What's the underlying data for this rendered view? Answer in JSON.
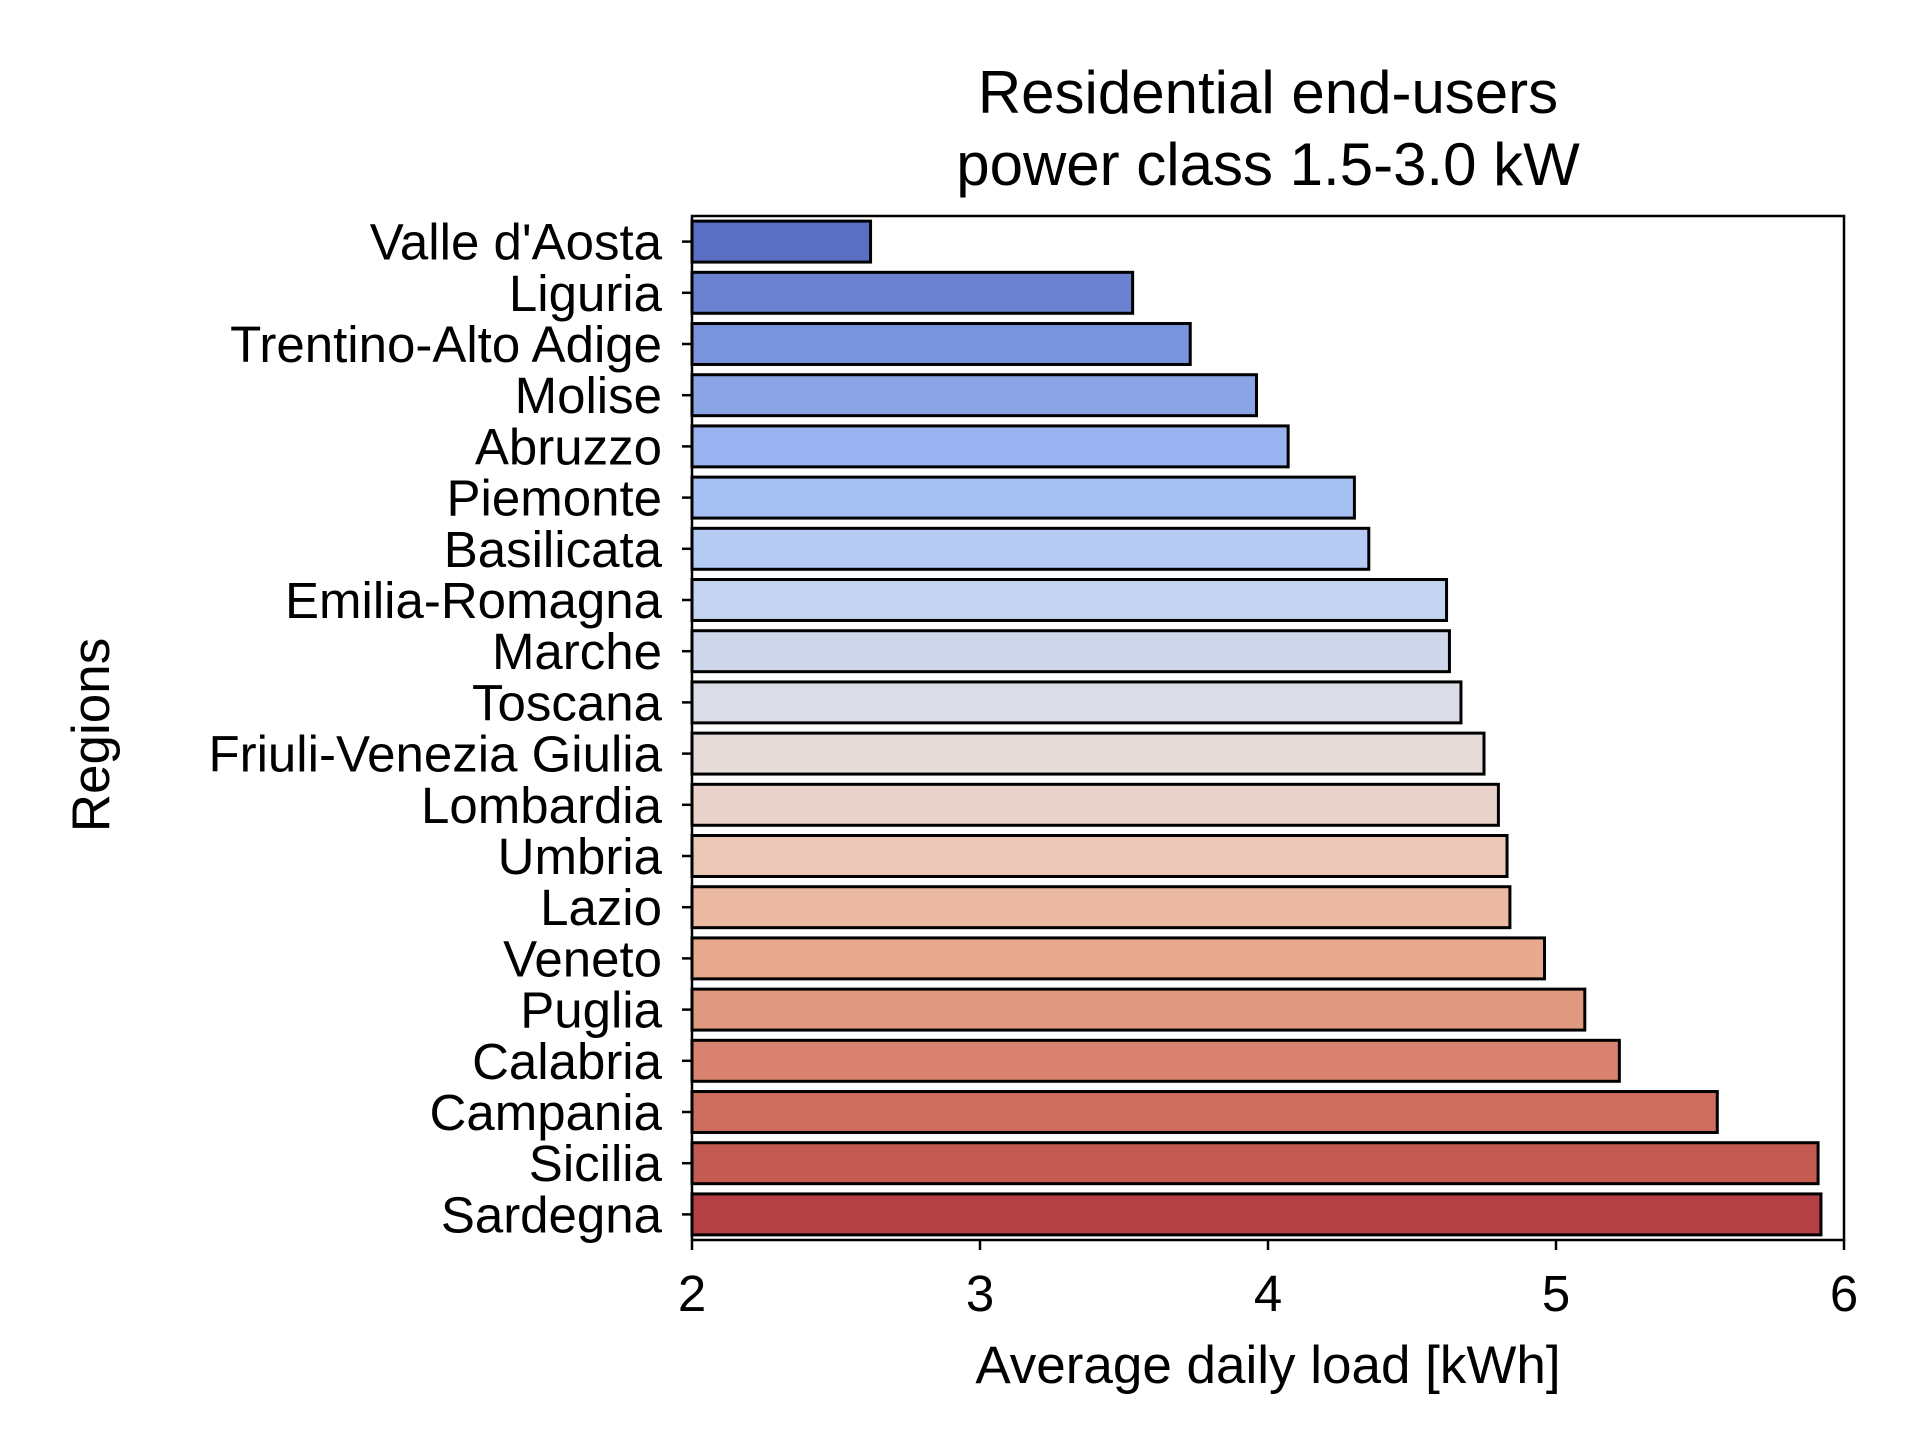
{
  "chart_data": {
    "type": "bar",
    "orientation": "horizontal",
    "title": [
      "Residential end-users",
      "power class 1.5-3.0 kW"
    ],
    "xlabel": "Average daily load [kWh]",
    "ylabel": "Regions",
    "xlim": [
      2,
      6
    ],
    "xticks": [
      "2",
      "3",
      "4",
      "5",
      "6"
    ],
    "grid": false,
    "categories": [
      "Valle d'Aosta",
      "Liguria",
      "Trentino-Alto Adige",
      "Molise",
      "Abruzzo",
      "Piemonte",
      "Basilicata",
      "Emilia-Romagna",
      "Marche",
      "Toscana",
      "Friuli-Venezia Giulia",
      "Lombardia",
      "Umbria",
      "Lazio",
      "Veneto",
      "Puglia",
      "Calabria",
      "Campania",
      "Sicilia",
      "Sardegna"
    ],
    "values": [
      2.62,
      3.53,
      3.73,
      3.96,
      4.07,
      4.3,
      4.35,
      4.62,
      4.63,
      4.67,
      4.75,
      4.8,
      4.83,
      4.84,
      4.96,
      5.1,
      5.22,
      5.56,
      5.91,
      5.92
    ],
    "colors": [
      "#5a6fc4",
      "#6a82d1",
      "#7a93dd",
      "#8aa4e6",
      "#98b3ef",
      "#a6c0f3",
      "#b5cbf3",
      "#c3d3f0",
      "#cfd8eb",
      "#dadde5",
      "#e5dbd8",
      "#ead3ca",
      "#ecc8b8",
      "#ecbaa3",
      "#e8a98e",
      "#e19881",
      "#d9826f",
      "#cf6e60",
      "#c35b52",
      "#b43f45"
    ]
  }
}
